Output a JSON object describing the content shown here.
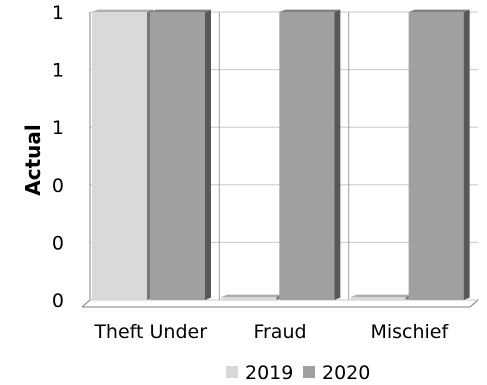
{
  "chart_data": {
    "type": "bar",
    "title": "",
    "xlabel": "",
    "ylabel": "Actual",
    "categories": [
      "Theft Under",
      "Fraud",
      "Mischief"
    ],
    "series": [
      {
        "name": "2019",
        "values": [
          1,
          0,
          0
        ],
        "color": "#d9d9d9"
      },
      {
        "name": "2020",
        "values": [
          1,
          1,
          1
        ],
        "color": "#a0a0a0"
      }
    ],
    "y_tick_labels": [
      "0",
      "0",
      "0",
      "1",
      "1",
      "1"
    ],
    "ylim": [
      0,
      1
    ],
    "grid": true,
    "legend_position": "bottom"
  }
}
